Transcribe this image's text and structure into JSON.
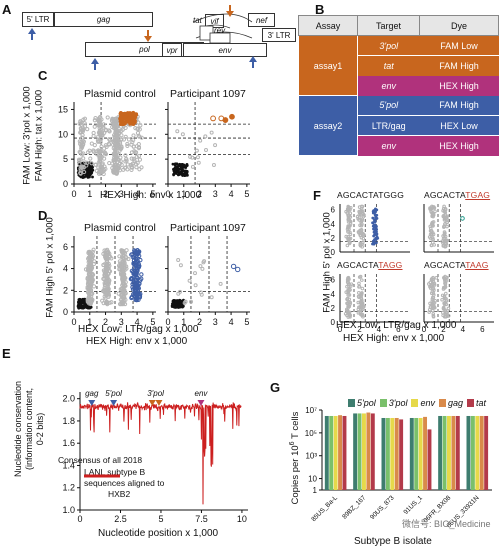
{
  "panel_labels": {
    "a": "A",
    "b": "B",
    "c": "C",
    "d": "D",
    "e": "E",
    "f": "F",
    "g": "G"
  },
  "colors": {
    "orange": "#c8661e",
    "blue": "#3d5ea6",
    "magenta": "#b0327c",
    "grey": "#b5b5b5",
    "black": "#111111",
    "red": "#cc1f1f",
    "tbl_header": "#e6e6e6"
  },
  "genome": {
    "ltr5": "5' LTR",
    "ltr3": "3' LTR",
    "genes": [
      "gag",
      "pol",
      "vif",
      "vpr",
      "tat",
      "rev",
      "vpu",
      "env",
      "nef"
    ]
  },
  "assay_table": {
    "headers": [
      "Assay",
      "Target",
      "Dye"
    ],
    "assay1_label": "assay1",
    "assay2_label": "assay2",
    "rows": [
      {
        "target": "3'pol",
        "dye": "FAM Low"
      },
      {
        "target": "tat",
        "dye": "FAM High"
      },
      {
        "target": "env",
        "dye": "HEX High"
      },
      {
        "target": "5'pol",
        "dye": "FAM High"
      },
      {
        "target": "LTR/gag",
        "dye": "HEX Low"
      },
      {
        "target": "env",
        "dye": "HEX High"
      }
    ]
  },
  "panel_c": {
    "title_left": "Plasmid control",
    "title_right": "Participant 1097",
    "ylabel1": "FAM Low: 3'pol x 1,000",
    "ylabel2": "FAM High: tat x 1,000",
    "xlabel": "HEX High: env x 1,000",
    "yticks": [
      "0",
      "5",
      "10",
      "15"
    ],
    "xticks": [
      "0",
      "1",
      "2",
      "3",
      "4",
      "5"
    ]
  },
  "panel_d": {
    "title_left": "Plasmid control",
    "title_right": "Participant 1097",
    "ylabel": "FAM High 5' pol x 1,000",
    "xlabel1": "HEX Low: LTR/gag x 1,000",
    "xlabel2": "HEX High: env x 1,000",
    "yticks": [
      "0",
      "2",
      "4",
      "6"
    ],
    "xticks": [
      "0",
      "1",
      "2",
      "3",
      "4",
      "5"
    ]
  },
  "panel_e": {
    "ylabel1": "Nucleotide conservation",
    "ylabel2": "(information content,",
    "ylabel3": "0-2 bits)",
    "xlabel": "Nucleotide position x 1,000",
    "yticks": [
      "1.0",
      "1.2",
      "1.4",
      "1.6",
      "1.8",
      "2.0"
    ],
    "xticks": [
      "0",
      "2.5",
      "5",
      "7.5",
      "10"
    ],
    "markers": [
      "gag",
      "5'pol",
      "3'pol",
      "env"
    ],
    "legend_lines": [
      "Consensus of all 2018",
      "LANL subtype B",
      "sequences aligned to",
      "HXB2"
    ]
  },
  "panel_f": {
    "seq_prefix": "AGCACTA",
    "sequences": [
      {
        "pre": "AGCACTA",
        "post": "TGGG",
        "mut": ""
      },
      {
        "pre": "AGCACTA",
        "post": "",
        "mut": "TGAG"
      },
      {
        "pre": "AGCACTA",
        "post": "",
        "mut": "TAGG"
      },
      {
        "pre": "AGCACTA",
        "post": "",
        "mut": "TAAG"
      }
    ],
    "seq_display": [
      {
        "a": "AGCACTATGGG",
        "b": ""
      },
      {
        "a": "AGCACTA",
        "b": "TGAG"
      },
      {
        "a": "AGCACTA",
        "b": "TAGG"
      },
      {
        "a": "AGCACTA",
        "b": "TAAG"
      }
    ],
    "ylabel": "FAM High 5' pol x 1,000",
    "xlabel1": "HEX Low: LTR/gag x 1,000",
    "xlabel2": "HEX High: env x 1,000",
    "yticks": [
      "0",
      "2",
      "4",
      "6"
    ],
    "xticks": [
      "0",
      "2",
      "4",
      "6"
    ]
  },
  "chart_data": [
    {
      "type": "bar",
      "panel": "G",
      "title": "",
      "ylabel": "Copies per 10^6 T cells",
      "xlabel": "Subtype B isolate",
      "yscale": "log",
      "ylim": [
        1,
        10000000
      ],
      "yticks": [
        "1",
        "10",
        "10³",
        "10⁵",
        "10⁷"
      ],
      "categories": [
        "85US_Ba-L",
        "89BZ_167",
        "90US_873",
        "91US_1",
        "06FR_BX08",
        "06US_33931N"
      ],
      "series": [
        {
          "name": "5'pol",
          "color": "#3e7d6f",
          "values": [
            3000000,
            5000000,
            2000000,
            2000000,
            3000000,
            3000000
          ]
        },
        {
          "name": "3'pol",
          "color": "#7ac06b",
          "values": [
            3000000,
            5000000,
            2000000,
            2000000,
            3000000,
            3000000
          ]
        },
        {
          "name": "env",
          "color": "#e6d94a",
          "values": [
            3000000,
            5000000,
            2000000,
            2000000,
            3000000,
            3000000
          ]
        },
        {
          "name": "gag",
          "color": "#d98a4a",
          "values": [
            3500000,
            6000000,
            2000000,
            2500000,
            3000000,
            3000000
          ]
        },
        {
          "name": "tat",
          "color": "#b33a4a",
          "values": [
            3000000,
            5000000,
            1500000,
            200000,
            3000000,
            3000000
          ]
        }
      ]
    },
    {
      "type": "line",
      "panel": "E",
      "title": "",
      "xlabel": "Nucleotide position x 1,000",
      "ylabel": "Nucleotide conservation (information content, 0-2 bits)",
      "xlim": [
        0,
        10
      ],
      "ylim": [
        1.0,
        2.0
      ],
      "series": [
        {
          "name": "Consensus of all 2018 LANL subtype B sequences aligned to HXB2",
          "color": "#cc1f1f"
        }
      ]
    }
  ],
  "watermark": "微信号: BIO_Medicine"
}
